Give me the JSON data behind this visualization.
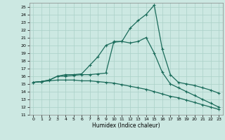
{
  "xlabel": "Humidex (Indice chaleur)",
  "background_color": "#cce8e2",
  "grid_color": "#aad0c8",
  "line_color": "#1a6b5a",
  "xlim": [
    -0.5,
    23.5
  ],
  "ylim": [
    11,
    25.5
  ],
  "yticks": [
    11,
    12,
    13,
    14,
    15,
    16,
    17,
    18,
    19,
    20,
    21,
    22,
    23,
    24,
    25
  ],
  "xticks": [
    0,
    1,
    2,
    3,
    4,
    5,
    6,
    7,
    8,
    9,
    10,
    11,
    12,
    13,
    14,
    15,
    16,
    17,
    18,
    19,
    20,
    21,
    22,
    23
  ],
  "line1_x": [
    0,
    1,
    2,
    3,
    4,
    5,
    6,
    7,
    8,
    9,
    10,
    11,
    12,
    13,
    14,
    15,
    16,
    17,
    18,
    19,
    20,
    21,
    22,
    23
  ],
  "line1_y": [
    15.2,
    15.3,
    15.5,
    16.0,
    16.0,
    16.1,
    16.2,
    16.2,
    16.3,
    16.4,
    20.5,
    20.5,
    22.2,
    23.2,
    24.0,
    25.2,
    19.5,
    16.2,
    15.2,
    15.0,
    14.8,
    14.5,
    14.2,
    13.8
  ],
  "line2_x": [
    0,
    1,
    2,
    3,
    4,
    5,
    6,
    7,
    8,
    9,
    10,
    11,
    12,
    13,
    14,
    15,
    16,
    17,
    18,
    19,
    20,
    21,
    22,
    23
  ],
  "line2_y": [
    15.2,
    15.3,
    15.5,
    16.0,
    16.2,
    16.2,
    16.3,
    17.4,
    18.5,
    20.0,
    20.4,
    20.5,
    20.3,
    20.5,
    21.0,
    19.0,
    16.5,
    15.0,
    14.5,
    14.0,
    13.5,
    13.0,
    12.5,
    12.0
  ],
  "line3_x": [
    0,
    1,
    2,
    3,
    4,
    5,
    6,
    7,
    8,
    9,
    10,
    11,
    12,
    13,
    14,
    15,
    16,
    17,
    18,
    19,
    20,
    21,
    22,
    23
  ],
  "line3_y": [
    15.2,
    15.3,
    15.4,
    15.5,
    15.5,
    15.5,
    15.4,
    15.4,
    15.3,
    15.2,
    15.1,
    14.9,
    14.7,
    14.5,
    14.3,
    14.0,
    13.7,
    13.4,
    13.2,
    12.9,
    12.6,
    12.3,
    12.0,
    11.7
  ]
}
